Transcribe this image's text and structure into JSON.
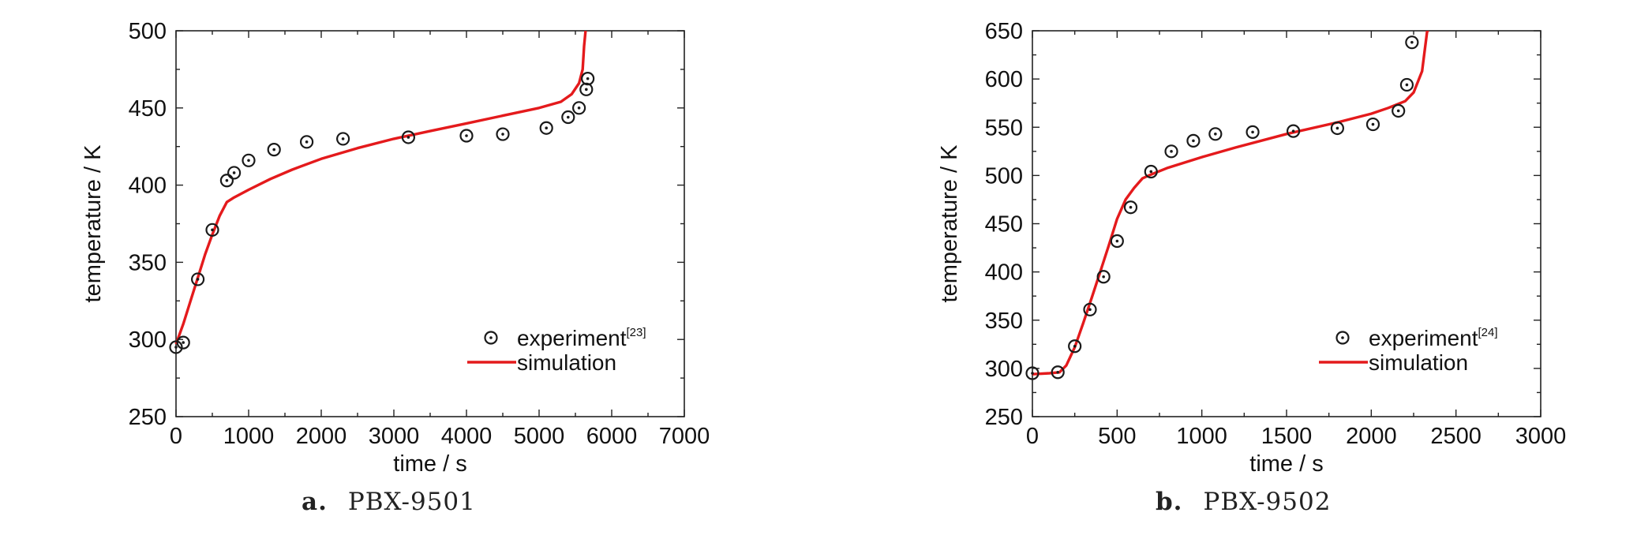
{
  "chart_data": [
    {
      "panel": "a",
      "type": "scatter",
      "xlabel": "time / s",
      "ylabel": "temperature / K",
      "xlim": [
        0,
        7000
      ],
      "ylim": [
        250,
        500
      ],
      "xticks": [
        0,
        1000,
        2000,
        3000,
        4000,
        5000,
        6000,
        7000
      ],
      "yticks": [
        250,
        300,
        350,
        400,
        450,
        500
      ],
      "legend_position": "lower-right",
      "grid": false,
      "caption": {
        "letter": "a.",
        "text": "PBX-9501"
      },
      "series": [
        {
          "name": "experiment",
          "name_ref": "[23]",
          "kind": "markers",
          "marker": "circle-dot",
          "color": "#1a1a1a",
          "x": [
            0,
            100,
            300,
            500,
            700,
            800,
            1000,
            1350,
            1800,
            2300,
            3200,
            4000,
            4500,
            5100,
            5400,
            5550,
            5650,
            5670
          ],
          "y": [
            295,
            298,
            339,
            371,
            403,
            408,
            416,
            423,
            428,
            430,
            431,
            432,
            433,
            437,
            444,
            450,
            462,
            469
          ]
        },
        {
          "name": "simulation",
          "kind": "line",
          "color": "#e41a1c",
          "x": [
            0,
            100,
            200,
            300,
            400,
            500,
            600,
            700,
            800,
            1000,
            1300,
            1600,
            2000,
            2500,
            3000,
            3500,
            4000,
            4500,
            5000,
            5300,
            5450,
            5550,
            5600,
            5620,
            5640,
            5650
          ],
          "y": [
            297,
            310,
            325,
            340,
            355,
            368,
            380,
            389,
            392,
            397,
            404,
            410,
            417,
            424,
            430,
            435,
            440,
            445,
            450,
            454,
            459,
            466,
            475,
            490,
            500,
            500
          ]
        }
      ]
    },
    {
      "panel": "b",
      "type": "scatter",
      "xlabel": "time / s",
      "ylabel": "temperature / K",
      "xlim": [
        0,
        3000
      ],
      "ylim": [
        250,
        650
      ],
      "xticks": [
        0,
        500,
        1000,
        1500,
        2000,
        2500,
        3000
      ],
      "yticks": [
        250,
        300,
        350,
        400,
        450,
        500,
        550,
        600,
        650
      ],
      "legend_position": "lower-right",
      "grid": false,
      "caption": {
        "letter": "b.",
        "text": "PBX-9502"
      },
      "series": [
        {
          "name": "experiment",
          "name_ref": "[24]",
          "kind": "markers",
          "marker": "circle-dot",
          "color": "#1a1a1a",
          "x": [
            0,
            150,
            250,
            340,
            420,
            500,
            580,
            700,
            820,
            950,
            1080,
            1300,
            1540,
            1800,
            2010,
            2160,
            2210,
            2240
          ],
          "y": [
            295,
            296,
            323,
            361,
            395,
            432,
            467,
            504,
            525,
            536,
            543,
            545,
            546,
            549,
            553,
            567,
            594,
            638
          ]
        },
        {
          "name": "simulation",
          "kind": "line",
          "color": "#e41a1c",
          "x": [
            0,
            100,
            160,
            200,
            250,
            300,
            350,
            400,
            450,
            500,
            550,
            600,
            650,
            700,
            800,
            1000,
            1200,
            1500,
            1800,
            2000,
            2100,
            2200,
            2250,
            2300,
            2330,
            2340
          ],
          "y": [
            294,
            295,
            296,
            303,
            322,
            347,
            373,
            400,
            427,
            455,
            475,
            487,
            497,
            501,
            508,
            519,
            529,
            543,
            555,
            564,
            570,
            577,
            586,
            608,
            650,
            650
          ]
        }
      ]
    }
  ]
}
